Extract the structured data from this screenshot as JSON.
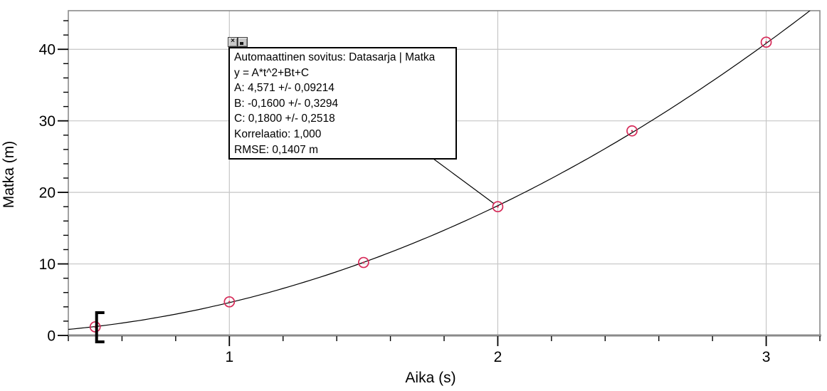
{
  "chart_data": {
    "type": "scatter",
    "title": "",
    "xlabel": "Aika (s)",
    "ylabel": "Matka (m)",
    "series": [
      {
        "name": "Datasarja | Matka",
        "x": [
          0.5,
          1.0,
          1.5,
          2.0,
          2.5,
          3.0
        ],
        "y": [
          1.2,
          4.7,
          10.2,
          18.0,
          28.6,
          41.0
        ]
      }
    ],
    "fit": {
      "kind": "quadratic",
      "equation": "y = A*t^2+Bt+C",
      "A": 4.571,
      "B": -0.16,
      "C": 0.18
    },
    "xlim": [
      0.4,
      3.2
    ],
    "ylim": [
      0,
      45.4
    ],
    "x_major_ticks": [
      1,
      2,
      3
    ],
    "y_major_ticks": [
      0,
      10,
      20,
      30,
      40
    ],
    "x_minor_step": 0.2,
    "y_minor_step": 2,
    "grid": true,
    "legend_position": "none",
    "selection_bracket_x": 0.5,
    "callout_target_point_index": 3
  },
  "fit_box": {
    "title": "Automaattinen sovitus: Datasarja | Matka",
    "equation": "y = A*t^2+Bt+C",
    "param_a": "A: 4,571 +/- 0,09214",
    "param_b": "B: -0,1600 +/- 0,3294",
    "param_c": "C: 0,1800 +/- 0,2518",
    "correlation": "Korrelaatio: 1,000",
    "rmse": "RMSE: 0,1407 m"
  },
  "icons": {
    "close": "×"
  },
  "colors": {
    "series_label": "#f20d3c",
    "point": "#d62a58",
    "grid": "#c6c6c6",
    "frame": "#8a8a8a",
    "zero_line": "#8a8a8a",
    "curve": "#000000",
    "axis_text": "#000000"
  }
}
